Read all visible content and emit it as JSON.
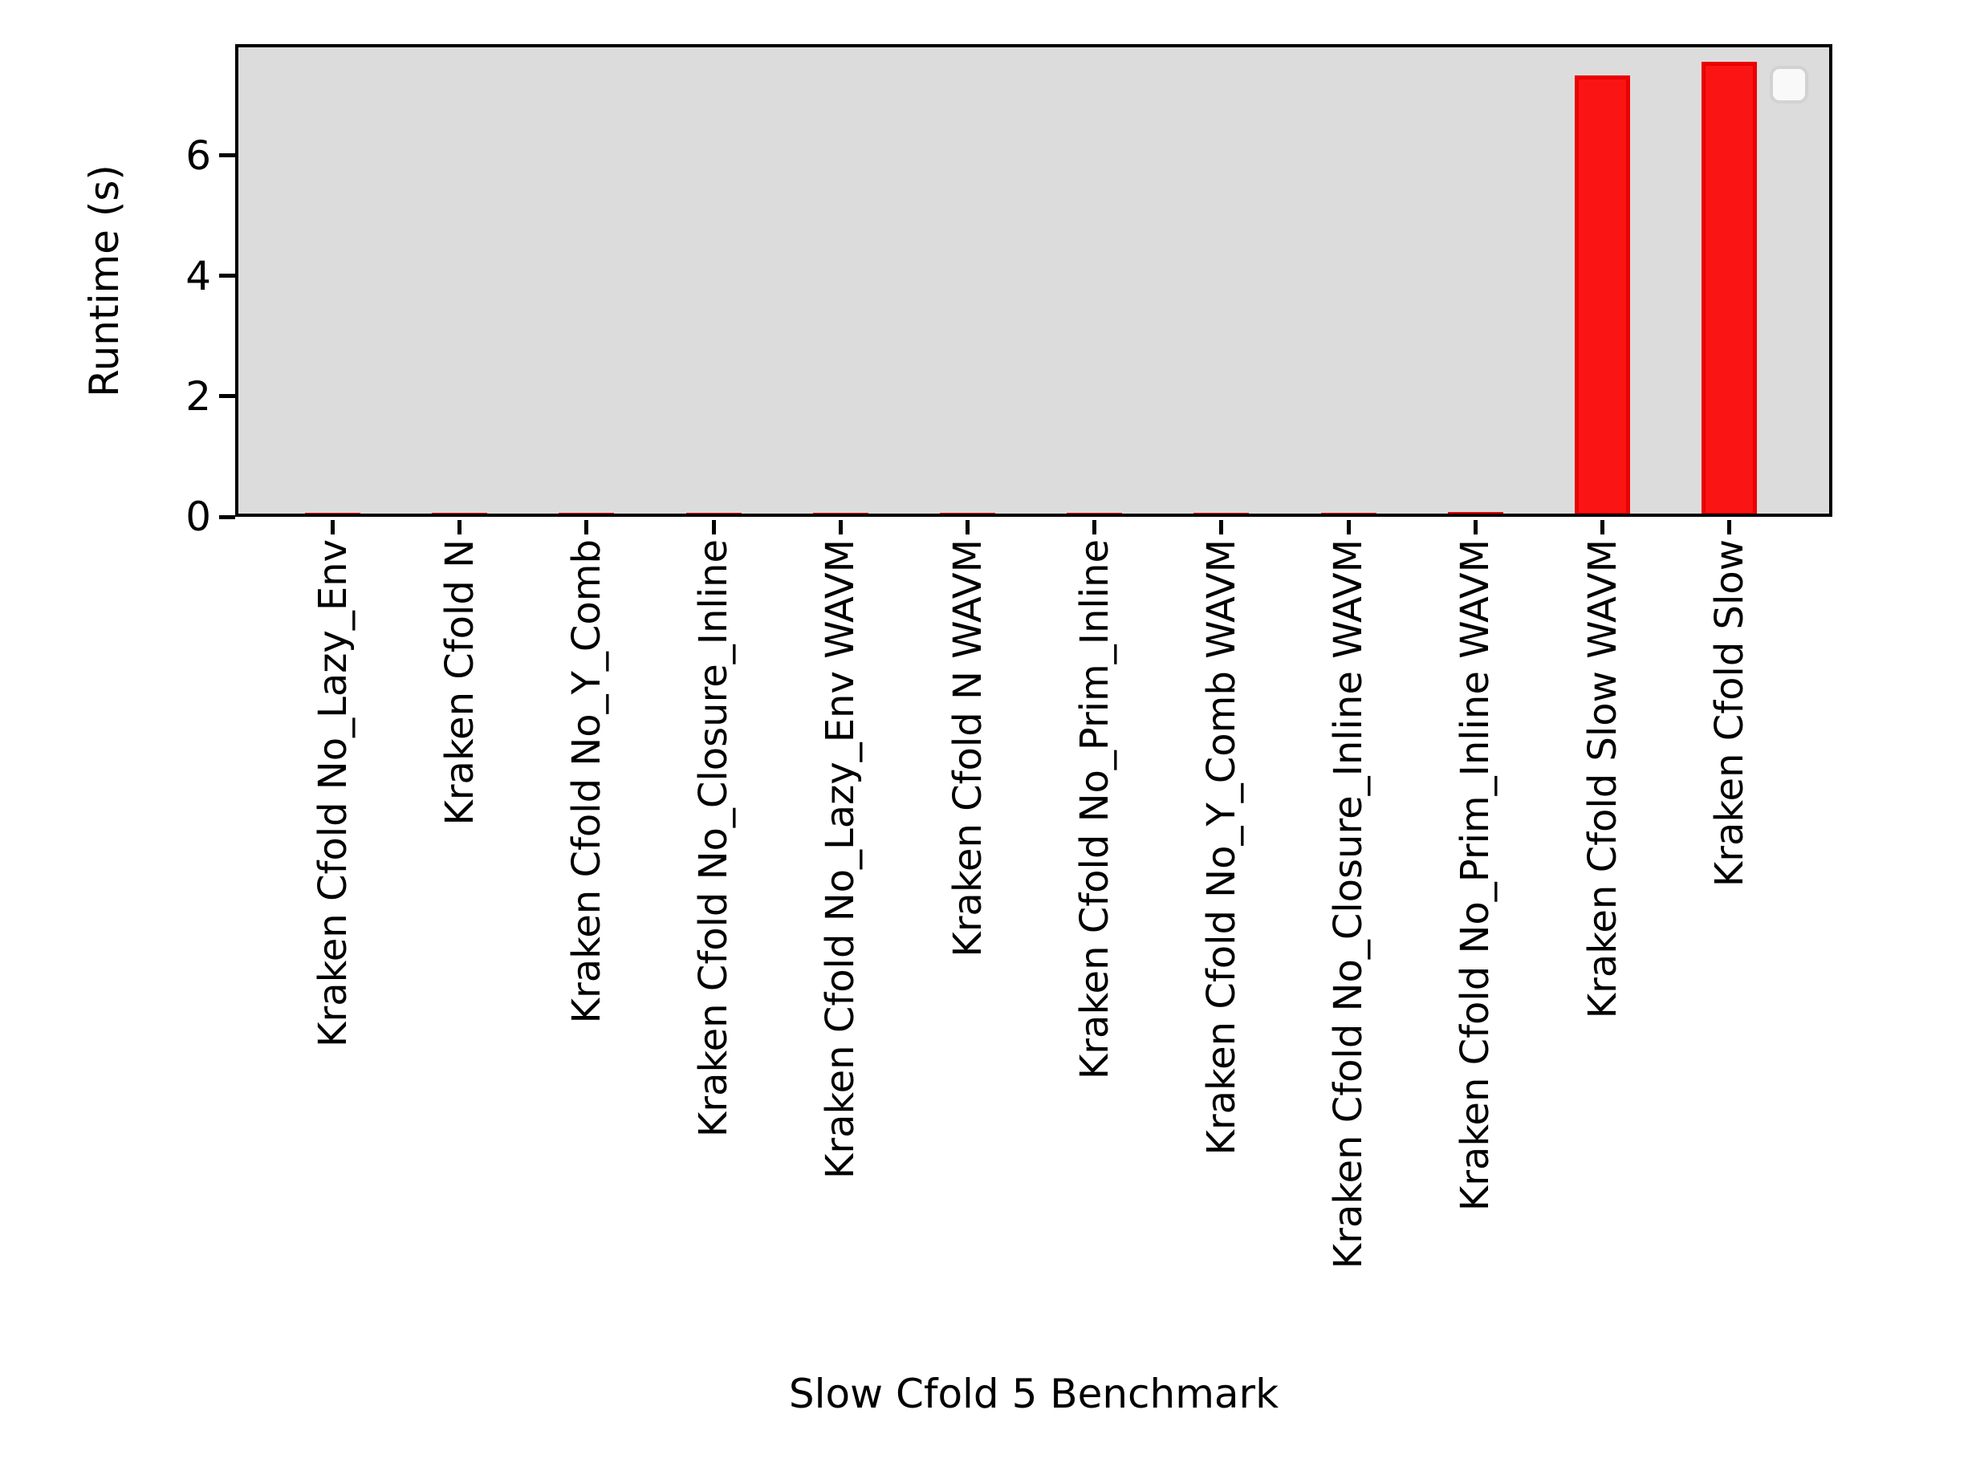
{
  "chart_data": {
    "type": "bar",
    "title": "",
    "xlabel": "Slow Cfold 5 Benchmark",
    "ylabel": "Runtime (s)",
    "categories": [
      "Kraken Cfold No_Lazy_Env",
      "Kraken Cfold N",
      "Kraken Cfold No_Y_Comb",
      "Kraken Cfold No_Closure_Inline",
      "Kraken Cfold No_Lazy_Env WAVM",
      "Kraken Cfold N WAVM",
      "Kraken Cfold No_Prim_Inline",
      "Kraken Cfold No_Y_Comb WAVM",
      "Kraken Cfold No_Closure_Inline WAVM",
      "Kraken Cfold No_Prim_Inline WAVM",
      "Kraken Cfold Slow WAVM",
      "Kraken Cfold Slow"
    ],
    "values": [
      0.03,
      0.03,
      0.025,
      0.035,
      0.04,
      0.04,
      0.045,
      0.045,
      0.055,
      0.075,
      7.33,
      7.56
    ],
    "yticks": [
      0,
      2,
      4,
      6
    ],
    "ylim": [
      0,
      7.85
    ],
    "grid": false,
    "legend": {
      "visible": true,
      "entries": [],
      "position": "upper-right"
    },
    "colors": {
      "bar_fill": "#fb1414",
      "bar_edge": "#ea0202",
      "plot_background": "#dcdcdc",
      "figure_background": "#ffffff",
      "axis_text": "#000000",
      "spine": "#000000",
      "legend_background": "#f9f9f9",
      "legend_border": "#d2d2d2"
    }
  }
}
